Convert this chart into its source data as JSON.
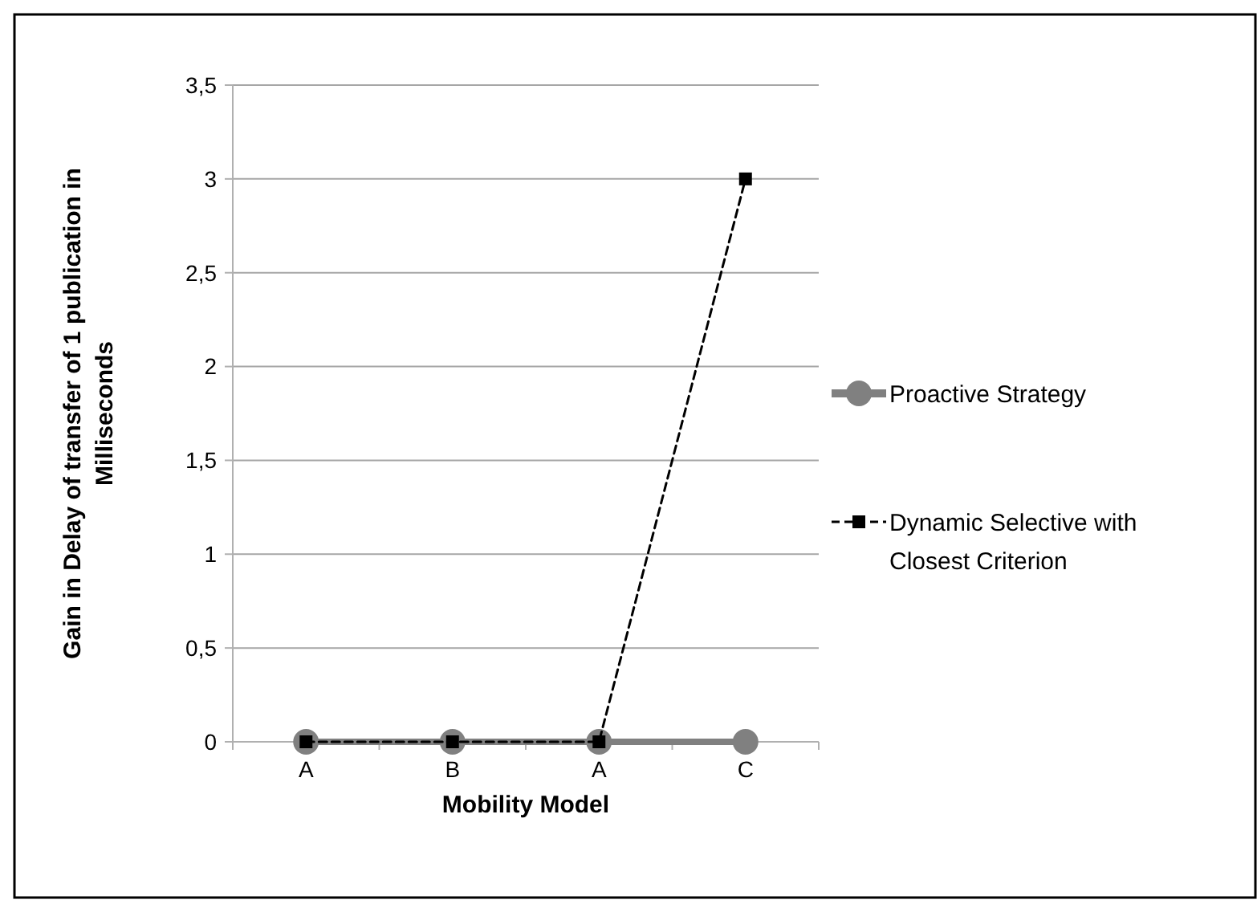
{
  "chart_data": {
    "type": "line",
    "xlabel": "Mobility Model",
    "ylabel": "Gain in Delay of transfer of 1 publication in Milliseconds",
    "categories": [
      "A",
      "B",
      "A",
      "C"
    ],
    "series": [
      {
        "name": "Proactive Strategy",
        "color": "#808080",
        "values": [
          0,
          0,
          0,
          0
        ],
        "marker": "circle",
        "line_style": "solid"
      },
      {
        "name": "Dynamic Selective with Closest Criterion",
        "color": "#000000",
        "values": [
          0,
          0,
          0,
          3
        ],
        "marker": "square",
        "line_style": "dashed"
      }
    ],
    "ylim": [
      0,
      3.5
    ],
    "yticks": [
      {
        "value": 0,
        "label": "0"
      },
      {
        "value": 0.5,
        "label": "0,5"
      },
      {
        "value": 1,
        "label": "1"
      },
      {
        "value": 1.5,
        "label": "1,5"
      },
      {
        "value": 2,
        "label": "2"
      },
      {
        "value": 2.5,
        "label": "2,5"
      },
      {
        "value": 3,
        "label": "3"
      },
      {
        "value": 3.5,
        "label": "3,5"
      }
    ],
    "grid": "y",
    "legend": "right"
  }
}
